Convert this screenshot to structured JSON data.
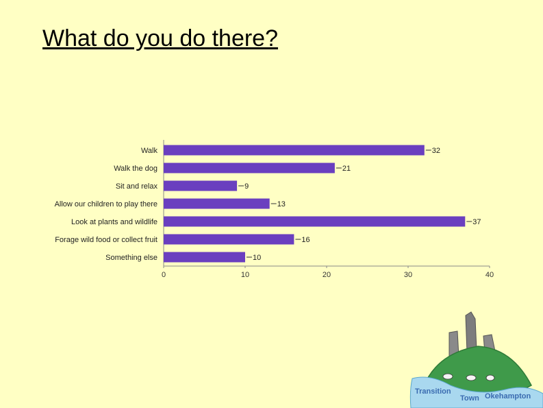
{
  "slide": {
    "title": "What do you do there?"
  },
  "chart_data": {
    "type": "bar",
    "orientation": "horizontal",
    "title": "",
    "xlabel": "",
    "ylabel": "",
    "categories": [
      "Walk",
      "Walk the dog",
      "Sit and relax",
      "Allow our children to play there",
      "Look at plants and wildlife",
      "Forage wild food or collect fruit",
      "Something else"
    ],
    "values": [
      32,
      21,
      9,
      13,
      37,
      16,
      10
    ],
    "xlim": [
      0,
      40
    ],
    "xticks": [
      0,
      10,
      20,
      30,
      40
    ],
    "grid": false,
    "legend": "none",
    "bar_color": "#6a3fbf"
  },
  "logo": {
    "line1": "Transition",
    "line2": "Town",
    "line3": "Okehampton",
    "text_color": "#3a6bb0",
    "hill_color": "#3f9a4a"
  }
}
